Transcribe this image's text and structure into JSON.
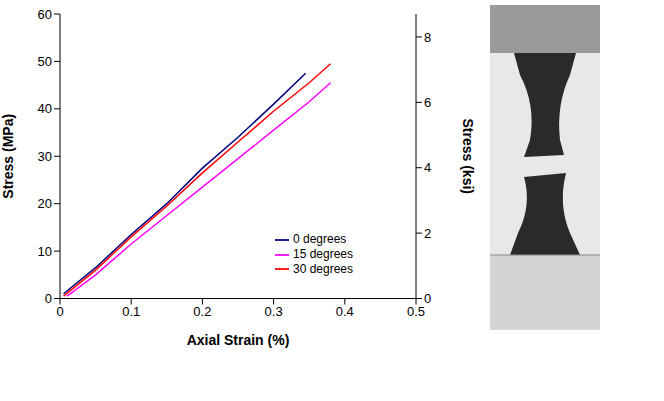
{
  "chart_data": {
    "type": "line",
    "x_label": "Axial Strain (%)",
    "y_label": "Stress (MPa)",
    "y2_label": "Stress (ksi)",
    "xlim": [
      0,
      0.5
    ],
    "xticks": [
      0,
      0.1,
      0.2,
      0.3,
      0.4,
      0.5
    ],
    "ylim": [
      0,
      60
    ],
    "yticks": [
      0,
      10,
      20,
      30,
      40,
      50,
      60
    ],
    "y2lim": [
      0,
      8.702
    ],
    "y2ticks": [
      0,
      2,
      4,
      6,
      8
    ],
    "grid": false,
    "legend": "lower right",
    "series": [
      {
        "name": "0 degrees",
        "color": "#000080",
        "marker": "none",
        "line_style": "solid",
        "x": [
          0.005,
          0.05,
          0.1,
          0.15,
          0.2,
          0.25,
          0.3,
          0.345
        ],
        "values": [
          1,
          6.5,
          13.5,
          20,
          27.5,
          34,
          41,
          47.5
        ]
      },
      {
        "name": "15 degrees",
        "color": "#ff00ff",
        "marker": "none",
        "line_style": "solid",
        "x": [
          0.01,
          0.05,
          0.1,
          0.15,
          0.2,
          0.25,
          0.3,
          0.35,
          0.38
        ],
        "values": [
          0.5,
          5,
          11.5,
          17.5,
          23.5,
          29.5,
          35.5,
          41.5,
          45.5
        ]
      },
      {
        "name": "30 degrees",
        "color": "#ff0000",
        "marker": "none",
        "line_style": "solid",
        "x": [
          0.005,
          0.05,
          0.1,
          0.15,
          0.2,
          0.25,
          0.3,
          0.35,
          0.38
        ],
        "values": [
          0.5,
          6,
          13,
          19.5,
          26.5,
          33,
          39.5,
          45.5,
          49.5
        ]
      }
    ]
  }
}
